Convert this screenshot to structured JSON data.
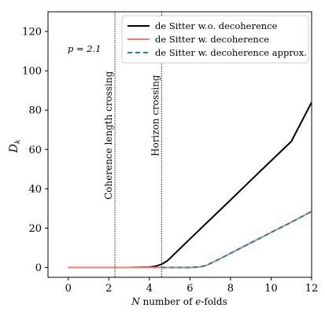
{
  "chart_data": {
    "type": "line",
    "title": "",
    "xlabel": "N number of e-folds",
    "xlabel_parts": [
      "N",
      " number of ",
      "e",
      "-folds"
    ],
    "ylabel": "D_k",
    "ylabel_main": "D",
    "ylabel_sub": "k",
    "xlim": [
      -1,
      12
    ],
    "ylim": [
      -5,
      130
    ],
    "xticks": [
      0,
      2,
      4,
      6,
      8,
      10,
      12
    ],
    "yticks": [
      0,
      20,
      40,
      60,
      80,
      100,
      120
    ],
    "grid": false,
    "legend_position": "top-right",
    "annotation": "p = 2.1",
    "vlines": [
      {
        "x": 2.3,
        "label": "Coherence length crossing",
        "style": "dotted",
        "color": "#000000"
      },
      {
        "x": 4.6,
        "label": "Horizon crossing",
        "style": "dotted",
        "color": "#000000"
      }
    ],
    "series": [
      {
        "name": "de Sitter w.o. decoherence",
        "color": "#000000",
        "dash": "solid",
        "x": [
          0,
          2,
          3,
          4,
          4.3,
          4.6,
          4.9,
          5.2,
          5.6,
          6,
          7,
          8,
          9,
          10,
          11,
          12
        ],
        "y": [
          0,
          0,
          0,
          0.2,
          0.6,
          1.6,
          3.5,
          6.5,
          10.5,
          14.5,
          24.4,
          34.3,
          44.3,
          54.2,
          64.1,
          84.0
        ]
      },
      {
        "name": "de Sitter w. decoherence",
        "color": "#f07b6e",
        "dash": "solid",
        "x": [
          0,
          2,
          4,
          5,
          6,
          6.5,
          6.8,
          7.1,
          7.5,
          8,
          9,
          10,
          11,
          12
        ],
        "y": [
          0,
          0,
          0,
          0,
          0,
          0.3,
          1.0,
          2.5,
          4.5,
          7.2,
          12.5,
          17.8,
          23.0,
          28.5
        ]
      },
      {
        "name": "de Sitter w. decoherence approx.",
        "color": "#1a8a8f",
        "dash": "dashed",
        "x": [
          4.6,
          5,
          6,
          6.5,
          6.8,
          7.1,
          7.5,
          8,
          9,
          10,
          11,
          12
        ],
        "y": [
          0,
          0,
          0,
          0.3,
          1.0,
          2.5,
          4.5,
          7.2,
          12.5,
          17.8,
          23.0,
          28.5
        ]
      }
    ]
  }
}
